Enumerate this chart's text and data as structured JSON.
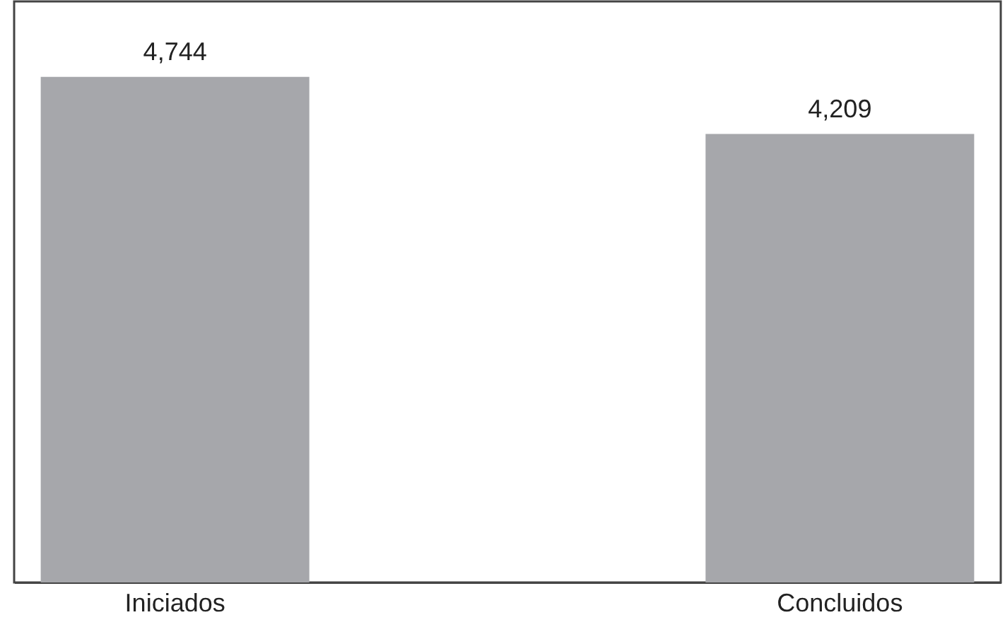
{
  "chart_data": {
    "type": "bar",
    "categories": [
      "Iniciados",
      "Concluidos"
    ],
    "values": [
      4744,
      4209
    ],
    "value_labels": [
      "4,744",
      "4,209"
    ],
    "color": "#a6a7ab",
    "grid": false
  }
}
